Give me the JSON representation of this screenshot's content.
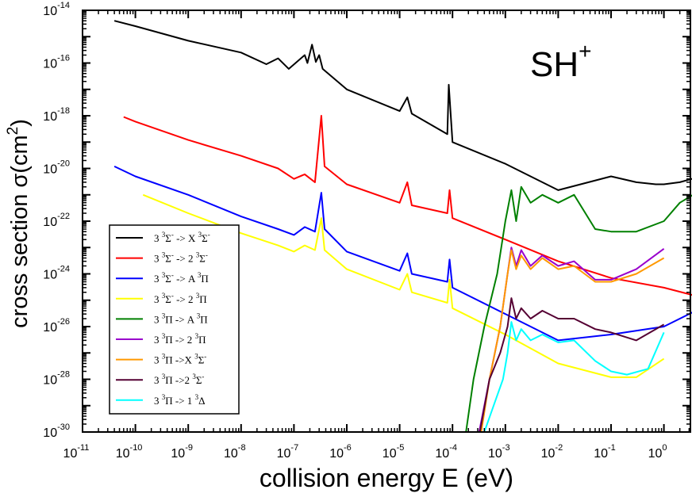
{
  "chart_data": {
    "type": "line",
    "scale": "log-log",
    "annotation": {
      "base": "SH",
      "sup": "+"
    },
    "xlabel": "collision energy E (eV)",
    "ylabel": {
      "text": "cross section σ(cm",
      "sup": "2",
      "close": ")"
    },
    "x_exponent_range": [
      -11,
      0
    ],
    "y_exponent_range": [
      -30,
      -14
    ],
    "xlim": [
      1e-11,
      5
    ],
    "ylim": [
      1e-30,
      1e-14
    ],
    "x_ticks": [
      {
        "base": "10",
        "exp": "-11",
        "value": 1e-11
      },
      {
        "base": "10",
        "exp": "-10",
        "value": 1e-10
      },
      {
        "base": "10",
        "exp": "-9",
        "value": 1e-09
      },
      {
        "base": "10",
        "exp": "-8",
        "value": 1e-08
      },
      {
        "base": "10",
        "exp": "-7",
        "value": 1e-07
      },
      {
        "base": "10",
        "exp": "-6",
        "value": 1e-06
      },
      {
        "base": "10",
        "exp": "-5",
        "value": 1e-05
      },
      {
        "base": "10",
        "exp": "-4",
        "value": 0.0001
      },
      {
        "base": "10",
        "exp": "-3",
        "value": 0.001
      },
      {
        "base": "10",
        "exp": "-2",
        "value": 0.01
      },
      {
        "base": "10",
        "exp": "-1",
        "value": 0.1
      },
      {
        "base": "10",
        "exp": "0",
        "value": 1
      }
    ],
    "y_ticks": [
      {
        "base": "10",
        "exp": "-30",
        "value": 1e-30
      },
      {
        "base": "10",
        "exp": "-28",
        "value": 1e-28
      },
      {
        "base": "10",
        "exp": "-26",
        "value": 1e-26
      },
      {
        "base": "10",
        "exp": "-24",
        "value": 1e-24
      },
      {
        "base": "10",
        "exp": "-22",
        "value": 1e-22
      },
      {
        "base": "10",
        "exp": "-20",
        "value": 1e-20
      },
      {
        "base": "10",
        "exp": "-18",
        "value": 1e-18
      },
      {
        "base": "10",
        "exp": "-16",
        "value": 1e-16
      },
      {
        "base": "10",
        "exp": "-14",
        "value": 1e-14
      }
    ],
    "grid": false,
    "legend_position": "bottom-left",
    "series": [
      {
        "name": "3 3Σ- -> X 3Σ-",
        "legend": [
          [
            "3 ",
            ""
          ],
          [
            "3",
            "sup"
          ],
          [
            "Σ",
            ""
          ],
          [
            "-",
            "sup"
          ],
          [
            "  -> X ",
            ""
          ],
          [
            "3",
            "sup"
          ],
          [
            "Σ",
            ""
          ],
          [
            "-",
            "sup"
          ]
        ],
        "color": "#000000",
        "x": [
          4e-11,
          1e-10,
          1e-09,
          1e-08,
          3e-08,
          5e-08,
          8e-08,
          1.6e-07,
          1.8e-07,
          2.2e-07,
          2.6e-07,
          3e-07,
          3.5e-07,
          1e-06,
          1e-05,
          1.4e-05,
          1.7e-05,
          8e-05,
          8.5e-05,
          0.0001,
          0.001,
          0.01,
          0.1,
          0.3,
          0.7,
          1,
          2,
          5
        ],
        "y": [
          4e-15,
          2.5e-15,
          7e-16,
          2.5e-16,
          9e-17,
          1.5e-16,
          6e-17,
          2e-16,
          1e-16,
          5e-16,
          1.1e-16,
          2e-16,
          6e-17,
          1e-17,
          1.5e-18,
          5e-18,
          1.2e-18,
          2e-19,
          1.5e-17,
          1e-19,
          1.5e-20,
          1.5e-21,
          5e-21,
          3e-21,
          2.5e-21,
          2.5e-21,
          3e-21,
          5e-21
        ]
      },
      {
        "name": "3 3Σ- -> 2 3Σ-",
        "legend": [
          [
            "3 ",
            ""
          ],
          [
            "3",
            "sup"
          ],
          [
            "Σ",
            ""
          ],
          [
            "-",
            "sup"
          ],
          [
            "  -> 2 ",
            ""
          ],
          [
            "3",
            "sup"
          ],
          [
            "Σ",
            ""
          ],
          [
            "-",
            "sup"
          ]
        ],
        "color": "#ff0000",
        "x": [
          6e-11,
          1e-10,
          1e-09,
          1e-08,
          5e-08,
          1e-07,
          1.6e-07,
          2.5e-07,
          3.3e-07,
          3.8e-07,
          1e-06,
          1e-05,
          1.4e-05,
          1.7e-05,
          8e-05,
          8.8e-05,
          0.0001,
          0.001,
          0.01,
          0.1,
          1,
          5
        ],
        "y": [
          9e-19,
          6e-19,
          1.2e-19,
          3e-20,
          1e-20,
          4e-21,
          6e-21,
          3e-21,
          1e-18,
          1.2e-20,
          2.5e-21,
          5e-22,
          3e-21,
          4e-22,
          2e-22,
          1.5e-21,
          1.3e-22,
          2e-23,
          3e-24,
          7e-25,
          3e-25,
          1.3e-25
        ]
      },
      {
        "name": "3 3Σ- -> A 3Π",
        "legend": [
          [
            "3 ",
            ""
          ],
          [
            "3",
            "sup"
          ],
          [
            "Σ",
            ""
          ],
          [
            "-",
            "sup"
          ],
          [
            "  -> A ",
            ""
          ],
          [
            "3",
            "sup"
          ],
          [
            "Π",
            ""
          ]
        ],
        "color": "#0000ff",
        "x": [
          4e-11,
          1e-10,
          1e-09,
          1e-08,
          5e-08,
          1e-07,
          1.6e-07,
          2.5e-07,
          3.3e-07,
          3.8e-07,
          1e-06,
          1e-05,
          1.4e-05,
          1.7e-05,
          8e-05,
          8.8e-05,
          0.0001,
          0.001,
          0.01,
          0.1,
          1,
          5
        ],
        "y": [
          1.2e-20,
          5e-21,
          1e-21,
          1.5e-22,
          5e-23,
          3e-23,
          6e-23,
          4e-23,
          1.2e-21,
          5e-23,
          7e-24,
          1.3e-24,
          6e-24,
          1e-24,
          5e-25,
          3.5e-24,
          3e-25,
          3e-26,
          3e-27,
          5e-27,
          1e-26,
          5e-26
        ]
      },
      {
        "name": "3 3Σ- -> 2 3Π",
        "legend": [
          [
            "3 ",
            ""
          ],
          [
            "3",
            "sup"
          ],
          [
            "Σ",
            ""
          ],
          [
            "-",
            "sup"
          ],
          [
            " -> 2 ",
            ""
          ],
          [
            "3",
            "sup"
          ],
          [
            "Π",
            ""
          ]
        ],
        "color": "#ffff00",
        "x": [
          1.4e-10,
          1e-09,
          1e-08,
          5e-08,
          1e-07,
          1.6e-07,
          2.5e-07,
          3.3e-07,
          3.8e-07,
          1e-06,
          1e-05,
          1.4e-05,
          1.7e-05,
          8e-05,
          8.8e-05,
          0.0001,
          0.001,
          0.01,
          0.1,
          0.3,
          1
        ],
        "y": [
          1e-21,
          2e-22,
          3.5e-23,
          1.2e-23,
          7e-24,
          1.2e-23,
          8e-24,
          1.3e-22,
          8e-24,
          1.5e-24,
          2.5e-25,
          1e-24,
          2e-25,
          8e-26,
          6e-25,
          5e-26,
          5e-27,
          4e-28,
          1.2e-28,
          1.2e-28,
          6e-28
        ]
      },
      {
        "name": "3 3Π -> A 3Π",
        "legend": [
          [
            "3 ",
            ""
          ],
          [
            "3",
            "sup"
          ],
          [
            "Π -> A ",
            ""
          ],
          [
            "3",
            "sup"
          ],
          [
            "Π",
            ""
          ]
        ],
        "color": "#008000",
        "x": [
          0.00018,
          0.00025,
          0.0004,
          0.0007,
          0.001,
          0.0013,
          0.0016,
          0.002,
          0.003,
          0.005,
          0.01,
          0.02,
          0.05,
          0.1,
          0.3,
          1,
          2,
          5
        ],
        "y": [
          1e-30,
          1e-28,
          1e-26,
          1e-24,
          1e-22,
          1.5e-21,
          1e-22,
          2e-21,
          5e-22,
          1e-21,
          5e-22,
          1e-21,
          5e-23,
          4e-23,
          4e-23,
          1e-22,
          5e-22,
          1.5e-21
        ]
      },
      {
        "name": "3 3Π -> 2 3Π",
        "legend": [
          [
            "3 ",
            ""
          ],
          [
            "3",
            "sup"
          ],
          [
            "Π -> 2 ",
            ""
          ],
          [
            "3",
            "sup"
          ],
          [
            "Π",
            ""
          ]
        ],
        "color": "#9900cc",
        "x": [
          0.00032,
          0.0005,
          0.0008,
          0.0011,
          0.0013,
          0.0016,
          0.002,
          0.003,
          0.005,
          0.01,
          0.02,
          0.05,
          0.1,
          0.3,
          1
        ],
        "y": [
          1e-30,
          1e-28,
          1e-26,
          1e-24,
          1e-23,
          2e-24,
          8e-24,
          2e-24,
          5e-24,
          2e-24,
          3e-24,
          6e-25,
          6e-25,
          1.5e-24,
          9e-24
        ]
      },
      {
        "name": "3 3Π ->X 3Σ-",
        "legend": [
          [
            "3 ",
            ""
          ],
          [
            "3",
            "sup"
          ],
          [
            "Π ->X ",
            ""
          ],
          [
            "3",
            "sup"
          ],
          [
            "Σ",
            ""
          ],
          [
            "-",
            "sup"
          ]
        ],
        "color": "#ff9900",
        "x": [
          0.00035,
          0.0005,
          0.0008,
          0.0011,
          0.0013,
          0.0016,
          0.002,
          0.003,
          0.005,
          0.01,
          0.02,
          0.05,
          0.1,
          0.3,
          1
        ],
        "y": [
          1e-30,
          1e-28,
          1e-26,
          1e-24,
          8e-24,
          1.5e-24,
          5e-24,
          1.5e-24,
          4e-24,
          1.5e-24,
          2e-24,
          5e-25,
          5e-25,
          1e-24,
          4e-24
        ]
      },
      {
        "name": "3 3Π ->2 3Σ-",
        "legend": [
          [
            "3 ",
            ""
          ],
          [
            "3",
            "sup"
          ],
          [
            "Π ->2 ",
            ""
          ],
          [
            "3",
            "sup"
          ],
          [
            "Σ",
            ""
          ],
          [
            "-",
            "sup"
          ]
        ],
        "color": "#550033",
        "x": [
          0.00033,
          0.0005,
          0.0008,
          0.0011,
          0.0013,
          0.0016,
          0.002,
          0.003,
          0.005,
          0.01,
          0.02,
          0.05,
          0.1,
          0.3,
          1
        ],
        "y": [
          1e-30,
          1e-28,
          1e-27,
          1e-26,
          1.2e-25,
          2e-26,
          5e-26,
          2e-26,
          4e-26,
          2e-26,
          2e-26,
          8e-27,
          6e-27,
          3e-27,
          1.2e-26
        ]
      },
      {
        "name": "3 3Π -> 1 3Δ",
        "legend": [
          [
            "3 ",
            ""
          ],
          [
            "3",
            "sup"
          ],
          [
            "Π -> 1 ",
            ""
          ],
          [
            "3",
            "sup"
          ],
          [
            "Δ",
            ""
          ]
        ],
        "color": "#00ffff",
        "x": [
          0.0004,
          0.0006,
          0.0009,
          0.0011,
          0.0013,
          0.0016,
          0.002,
          0.003,
          0.005,
          0.01,
          0.02,
          0.05,
          0.1,
          0.2,
          0.5,
          1
        ],
        "y": [
          1e-30,
          1e-29,
          1e-28,
          1e-27,
          1.5e-26,
          3e-27,
          8e-27,
          3e-27,
          5e-27,
          2.5e-27,
          3e-27,
          5e-28,
          2e-28,
          1.5e-28,
          2.5e-28,
          6e-27
        ]
      }
    ]
  }
}
